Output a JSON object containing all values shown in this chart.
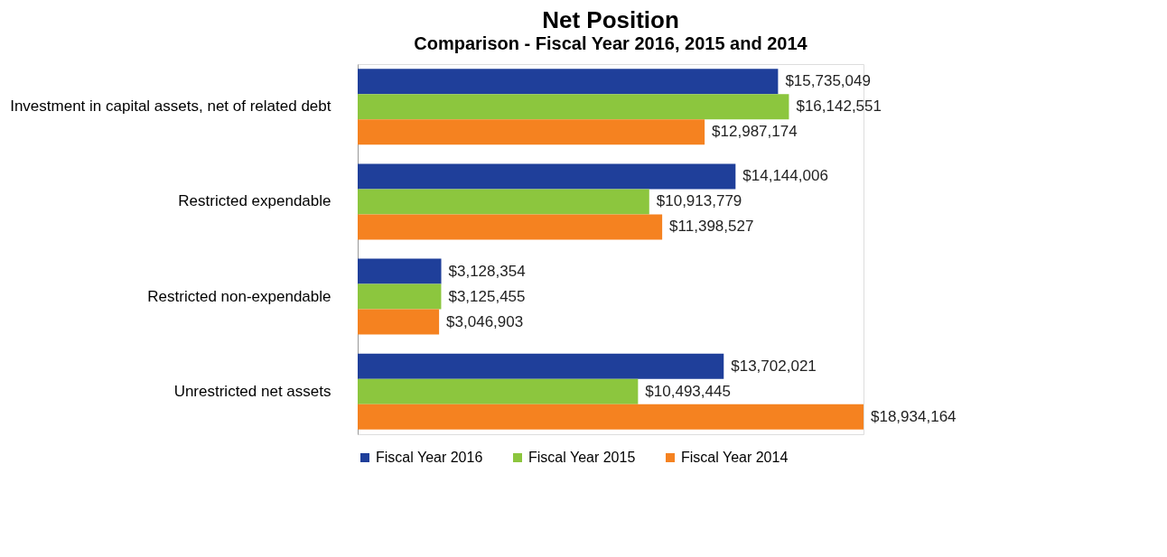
{
  "chart_data": {
    "type": "bar",
    "orientation": "horizontal",
    "title": "Net Position",
    "subtitle": "Comparison - Fiscal Year 2016, 2015 and 2014",
    "categories": [
      "Investment in capital assets, net of related debt",
      "Restricted expendable",
      "Restricted non-expendable",
      "Unrestricted net assets"
    ],
    "series": [
      {
        "name": "Fiscal Year 2016",
        "color": "#1f3f9a",
        "values": [
          15735049,
          14144006,
          3128354,
          13702021
        ],
        "value_labels": [
          "$15,735,049",
          "$14,144,006",
          "$3,128,354",
          "$13,702,021"
        ]
      },
      {
        "name": "Fiscal Year 2015",
        "color": "#8cc63e",
        "values": [
          16142551,
          10913779,
          3125455,
          10493445
        ],
        "value_labels": [
          "$16,142,551",
          "$10,913,779",
          "$3,125,455",
          "$10,493,445"
        ]
      },
      {
        "name": "Fiscal Year 2014",
        "color": "#f58220",
        "values": [
          12987174,
          11398527,
          3046903,
          18934164
        ],
        "value_labels": [
          "$12,987,174",
          "$11,398,527",
          "$3,046,903",
          "$18,934,164"
        ]
      }
    ],
    "legend": "bottom"
  }
}
